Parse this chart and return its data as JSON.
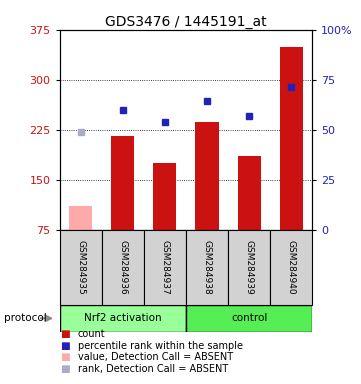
{
  "title": "GDS3476 / 1445191_at",
  "samples": [
    "GSM284935",
    "GSM284936",
    "GSM284937",
    "GSM284938",
    "GSM284939",
    "GSM284940"
  ],
  "bar_values": [
    null,
    215,
    175,
    237,
    185,
    350
  ],
  "bar_absent_values": [
    110,
    null,
    null,
    null,
    null,
    null
  ],
  "rank_values": [
    null,
    255,
    237,
    268,
    245,
    290
  ],
  "rank_absent_values": [
    222,
    null,
    null,
    null,
    null,
    null
  ],
  "ylim_left": [
    75,
    375
  ],
  "ylim_right": [
    0,
    100
  ],
  "yticks_left": [
    75,
    150,
    225,
    300,
    375
  ],
  "yticks_right": [
    0,
    25,
    50,
    75,
    100
  ],
  "ytick_labels_right": [
    "0",
    "25",
    "50",
    "75",
    "100%"
  ],
  "bar_color": "#CC1111",
  "bar_absent_color": "#FFAAAA",
  "rank_color": "#2222BB",
  "rank_absent_color": "#AAAACC",
  "nrf2_color": "#99FF99",
  "control_color": "#55EE55",
  "bar_width": 0.55,
  "background_color": "#FFFFFF",
  "tick_label_color_left": "#CC1111",
  "tick_label_color_right": "#2222BB",
  "legend_items": [
    [
      "#CC1111",
      "count"
    ],
    [
      "#2222BB",
      "percentile rank within the sample"
    ],
    [
      "#FFAAAA",
      "value, Detection Call = ABSENT"
    ],
    [
      "#AAAACC",
      "rank, Detection Call = ABSENT"
    ]
  ]
}
